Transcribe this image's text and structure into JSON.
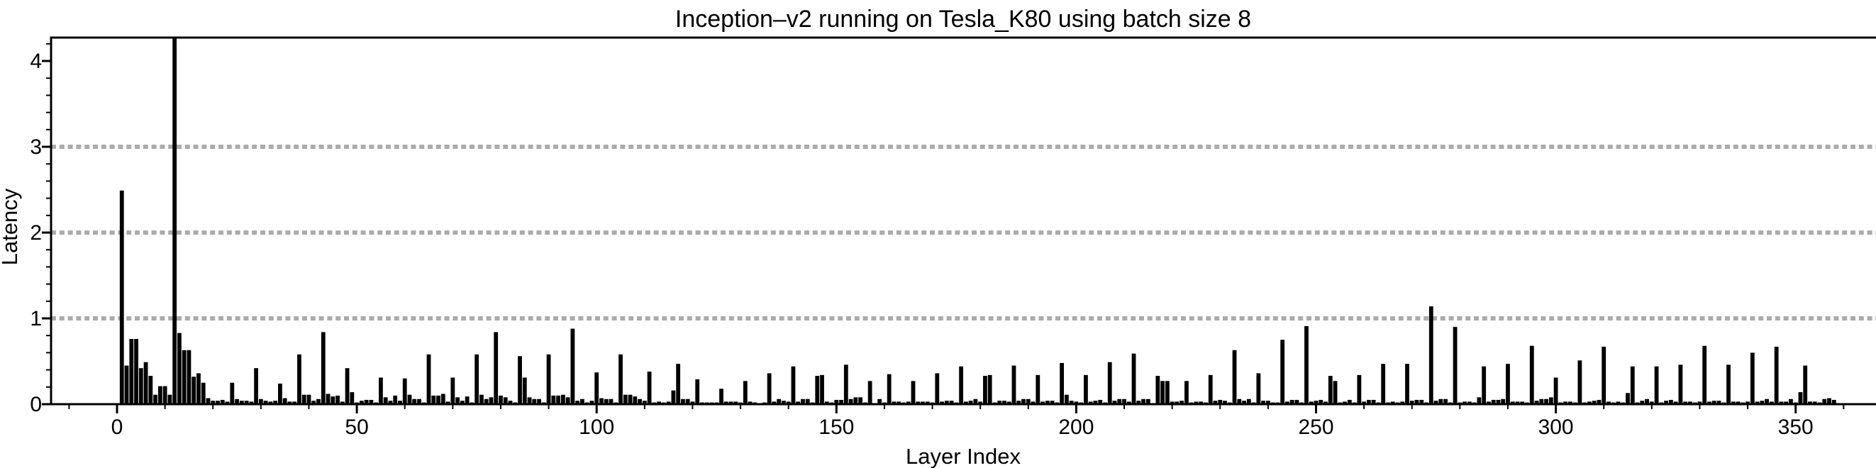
{
  "chart_data": {
    "type": "bar",
    "title": "Inception–v2 running on Tesla_K80 using batch size 8",
    "xlabel": "Layer Index",
    "ylabel": "Latency",
    "legend": "none",
    "grid": "horizontal-dotted",
    "bar_color": "#000000",
    "gridline_color": "#ababab",
    "axis_color": "#000000",
    "ylim": [
      0,
      4.27
    ],
    "xlim": [
      -14,
      362
    ],
    "x_ticks_major": [
      0,
      50,
      100,
      150,
      200,
      250,
      300,
      350
    ],
    "x_tick_minor_step": 10,
    "y_ticks_major": [
      0,
      1,
      2,
      3,
      4
    ],
    "y_tick_minor_step": 0.2,
    "gridlines_y": [
      1,
      2,
      3
    ],
    "first_layer_index": 1,
    "note": "bar at layer 12 is clipped at the top of the plot area",
    "values": [
      2.49,
      0.45,
      0.76,
      0.76,
      0.42,
      0.49,
      0.33,
      0.11,
      0.21,
      0.21,
      0.11,
      4.27,
      0.83,
      0.63,
      0.63,
      0.32,
      0.36,
      0.25,
      0.07,
      0.04,
      0.04,
      0.05,
      0.03,
      0.25,
      0.06,
      0.04,
      0.04,
      0.03,
      0.42,
      0.06,
      0.04,
      0.03,
      0.04,
      0.24,
      0.07,
      0.03,
      0.03,
      0.58,
      0.11,
      0.11,
      0.04,
      0.06,
      0.84,
      0.12,
      0.09,
      0.1,
      0.03,
      0.42,
      0.14,
      0.02,
      0.04,
      0.05,
      0.05,
      0.02,
      0.31,
      0.08,
      0.04,
      0.1,
      0.04,
      0.3,
      0.11,
      0.06,
      0.06,
      0.02,
      0.58,
      0.1,
      0.1,
      0.12,
      0.03,
      0.31,
      0.08,
      0.04,
      0.09,
      0.02,
      0.58,
      0.11,
      0.06,
      0.08,
      0.84,
      0.1,
      0.08,
      0.04,
      0.02,
      0.56,
      0.31,
      0.08,
      0.06,
      0.06,
      0.02,
      0.58,
      0.1,
      0.1,
      0.11,
      0.08,
      0.88,
      0.04,
      0.06,
      0.02,
      0.04,
      0.37,
      0.07,
      0.06,
      0.06,
      0.02,
      0.58,
      0.11,
      0.11,
      0.09,
      0.06,
      0.04,
      0.38,
      0.02,
      0.03,
      0.02,
      0.03,
      0.16,
      0.47,
      0.06,
      0.06,
      0.03,
      0.29,
      0.02,
      0.02,
      0.02,
      0.02,
      0.18,
      0.03,
      0.03,
      0.03,
      0.02,
      0.27,
      0.03,
      0.02,
      0.01,
      0.02,
      0.36,
      0.03,
      0.06,
      0.04,
      0.03,
      0.44,
      0.03,
      0.06,
      0.06,
      0.02,
      0.33,
      0.34,
      0.03,
      0.02,
      0.05,
      0.05,
      0.46,
      0.06,
      0.08,
      0.08,
      0.02,
      0.27,
      0.01,
      0.06,
      0.02,
      0.35,
      0.03,
      0.03,
      0.02,
      0.03,
      0.27,
      0.03,
      0.03,
      0.03,
      0.02,
      0.36,
      0.03,
      0.04,
      0.04,
      0.02,
      0.44,
      0.03,
      0.04,
      0.06,
      0.03,
      0.33,
      0.34,
      0.02,
      0.04,
      0.04,
      0.03,
      0.45,
      0.04,
      0.06,
      0.06,
      0.03,
      0.34,
      0.03,
      0.04,
      0.04,
      0.02,
      0.48,
      0.11,
      0.04,
      0.03,
      0.02,
      0.34,
      0.03,
      0.04,
      0.05,
      0.02,
      0.49,
      0.04,
      0.06,
      0.06,
      0.03,
      0.59,
      0.04,
      0.06,
      0.06,
      0.01,
      0.33,
      0.27,
      0.27,
      0.03,
      0.03,
      0.04,
      0.27,
      0.02,
      0.03,
      0.03,
      0.02,
      0.34,
      0.04,
      0.05,
      0.04,
      0.02,
      0.63,
      0.06,
      0.04,
      0.06,
      0.02,
      0.36,
      0.04,
      0.04,
      0.02,
      0.02,
      0.75,
      0.03,
      0.05,
      0.05,
      0.02,
      0.91,
      0.03,
      0.04,
      0.05,
      0.03,
      0.33,
      0.27,
      0.02,
      0.03,
      0.05,
      0.02,
      0.34,
      0.03,
      0.05,
      0.05,
      0.02,
      0.47,
      0.02,
      0.03,
      0.02,
      0.03,
      0.47,
      0.04,
      0.05,
      0.05,
      0.02,
      1.14,
      0.04,
      0.06,
      0.06,
      0.02,
      0.9,
      0.02,
      0.03,
      0.03,
      0.02,
      0.08,
      0.44,
      0.03,
      0.05,
      0.05,
      0.06,
      0.47,
      0.03,
      0.03,
      0.03,
      0.02,
      0.68,
      0.04,
      0.06,
      0.06,
      0.08,
      0.31,
      0.02,
      0.03,
      0.03,
      0.02,
      0.51,
      0.02,
      0.03,
      0.04,
      0.05,
      0.67,
      0.03,
      0.02,
      0.03,
      0.02,
      0.13,
      0.44,
      0.02,
      0.04,
      0.06,
      0.03,
      0.44,
      0.02,
      0.04,
      0.05,
      0.03,
      0.46,
      0.03,
      0.03,
      0.02,
      0.03,
      0.68,
      0.03,
      0.04,
      0.04,
      0.02,
      0.46,
      0.03,
      0.03,
      0.02,
      0.03,
      0.6,
      0.03,
      0.04,
      0.06,
      0.03,
      0.67,
      0.03,
      0.03,
      0.06,
      0.02,
      0.14,
      0.45,
      0.03,
      0.03,
      0.02,
      0.06,
      0.07,
      0.05
    ]
  }
}
